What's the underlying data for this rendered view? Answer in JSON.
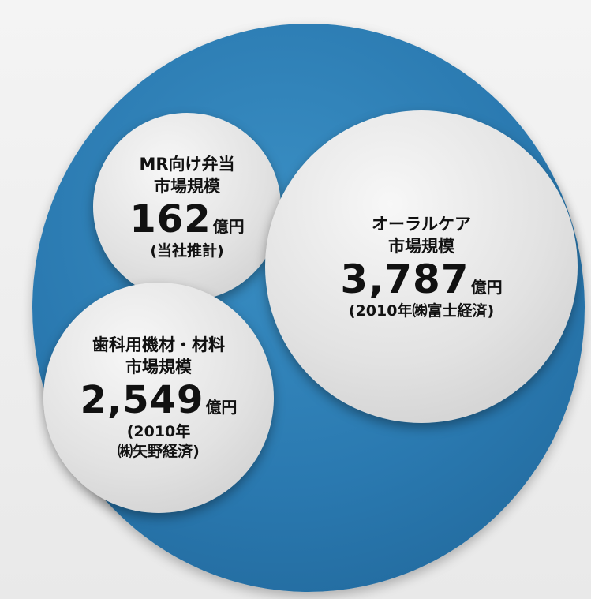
{
  "bubbles": {
    "mr": {
      "title_line1": "MR向け弁当",
      "title_line2": "市場規模",
      "value": "162",
      "unit": "億円",
      "source": "(当社推計)"
    },
    "oral": {
      "title_line1": "オーラルケア",
      "title_line2": "市場規模",
      "value": "3,787",
      "unit": "億円",
      "source": "(2010年㈱富士経済)"
    },
    "dental": {
      "title_line1": "歯科用機材・材料",
      "title_line2": "市場規模",
      "value": "2,549",
      "unit": "億円",
      "source_line1": "(2010年",
      "source_line2": "㈱矢野経済)"
    }
  },
  "colors": {
    "outer_circle": "#2a79b0",
    "bubble": "#e2e2e2",
    "text": "#111111"
  }
}
